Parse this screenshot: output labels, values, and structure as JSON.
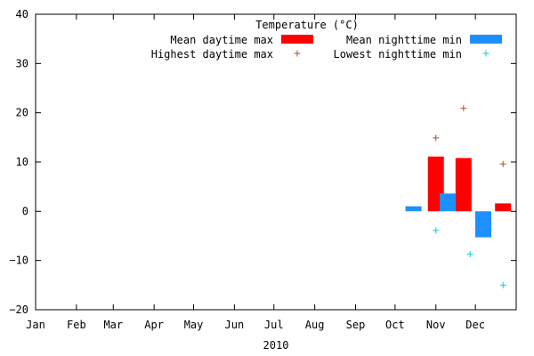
{
  "chart_data": {
    "type": "bar",
    "title": "Temperature (°C)",
    "xlabel": "2010",
    "ylabel": "",
    "ylim": [
      -20,
      40
    ],
    "yticks": [
      -20,
      -10,
      0,
      10,
      20,
      30,
      40
    ],
    "ytick_labels": [
      "−20",
      "−10",
      "0",
      "10",
      "20",
      "30",
      "40"
    ],
    "categories": [
      "Jan",
      "Feb",
      "Mar",
      "Apr",
      "May",
      "Jun",
      "Jul",
      "Aug",
      "Sep",
      "Oct",
      "Nov",
      "Dec"
    ],
    "grid": false,
    "legend_placement": "top-right",
    "series": [
      {
        "name": "Mean daytime max",
        "kind": "bar",
        "color": "#ff0000",
        "points": [
          {
            "x": "2010-11-01",
            "y": 11.1
          },
          {
            "x": "2010-11-22",
            "y": 10.8
          },
          {
            "x": "2010-12-22",
            "y": 1.6
          }
        ]
      },
      {
        "name": "Mean nighttime min",
        "kind": "bar",
        "color": "#1e8fff",
        "points": [
          {
            "x": "2010-10-15",
            "y": 1.0
          },
          {
            "x": "2010-11-10",
            "y": 3.6
          },
          {
            "x": "2010-12-07",
            "y": -5.3
          }
        ]
      },
      {
        "name": "Highest daytime max",
        "kind": "scatter",
        "marker": "+",
        "color": "#a0522d",
        "points": [
          {
            "x": "2010-11-01",
            "y": 14.9
          },
          {
            "x": "2010-11-22",
            "y": 20.9
          },
          {
            "x": "2010-12-22",
            "y": 9.6
          }
        ]
      },
      {
        "name": "Lowest nighttime min",
        "kind": "scatter",
        "marker": "+",
        "color": "#00d0d0",
        "points": [
          {
            "x": "2010-11-01",
            "y": -3.9
          },
          {
            "x": "2010-11-27",
            "y": -8.7
          },
          {
            "x": "2010-12-22",
            "y": -15.0
          }
        ]
      }
    ]
  }
}
